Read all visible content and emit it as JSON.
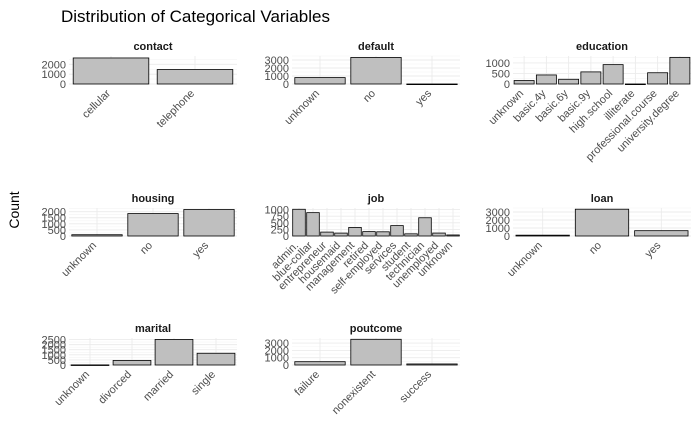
{
  "chart_data": {
    "type": "bar",
    "title": "Distribution of Categorical Variables",
    "ylabel": "Count",
    "facets": [
      {
        "name": "contact",
        "categories": [
          "cellular",
          "telephone"
        ],
        "values": [
          2650,
          1470
        ],
        "ylim": [
          0,
          2850
        ],
        "yticks": [
          0,
          1000,
          2000
        ]
      },
      {
        "name": "default",
        "categories": [
          "unknown",
          "no",
          "yes"
        ],
        "values": [
          800,
          3320,
          1
        ],
        "ylim": [
          0,
          3500
        ],
        "yticks": [
          0,
          1000,
          2000,
          3000
        ]
      },
      {
        "name": "education",
        "categories": [
          "unknown",
          "basic.4y",
          "basic.6y",
          "basic.9y",
          "high.school",
          "illiterate",
          "professional.course",
          "university.degree"
        ],
        "values": [
          165,
          430,
          225,
          575,
          920,
          1,
          535,
          1265
        ],
        "ylim": [
          0,
          1330
        ],
        "yticks": [
          0,
          500,
          1000
        ]
      },
      {
        "name": "housing",
        "categories": [
          "unknown",
          "no",
          "yes"
        ],
        "values": [
          105,
          1840,
          2175
        ],
        "ylim": [
          0,
          2300
        ],
        "yticks": [
          0,
          500,
          1000,
          1500,
          2000
        ]
      },
      {
        "name": "job",
        "categories": [
          "admin.",
          "blue-collar",
          "entrepreneur",
          "housemaid",
          "management",
          "retired",
          "self-employed",
          "services",
          "student",
          "technician",
          "unemployed",
          "unknown"
        ],
        "values": [
          1012,
          884,
          148,
          110,
          324,
          166,
          159,
          393,
          82,
          691,
          111,
          39
        ],
        "ylim": [
          0,
          1060
        ],
        "yticks": [
          0,
          250,
          500,
          750,
          1000
        ]
      },
      {
        "name": "loan",
        "categories": [
          "unknown",
          "no",
          "yes"
        ],
        "values": [
          105,
          3350,
          665
        ],
        "ylim": [
          0,
          3500
        ],
        "yticks": [
          0,
          1000,
          2000,
          3000
        ]
      },
      {
        "name": "marital",
        "categories": [
          "unknown",
          "divorced",
          "married",
          "single"
        ],
        "values": [
          11,
          446,
          2509,
          1153
        ],
        "ylim": [
          0,
          2650
        ],
        "yticks": [
          0,
          500,
          1000,
          1500,
          2000,
          2500
        ]
      },
      {
        "name": "poutcome",
        "categories": [
          "failure",
          "nonexistent",
          "success"
        ],
        "values": [
          454,
          3523,
          142
        ],
        "ylim": [
          0,
          3700
        ],
        "yticks": [
          0,
          1000,
          2000,
          3000
        ]
      }
    ]
  }
}
